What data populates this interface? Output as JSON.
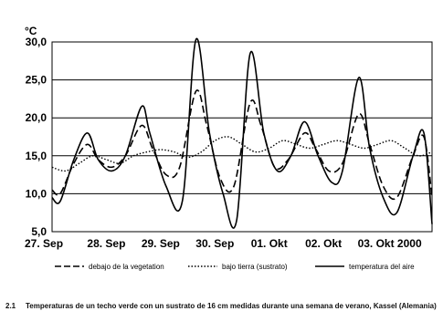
{
  "chart_data": {
    "type": "line",
    "unit_label": "°C",
    "ylim": [
      5,
      30
    ],
    "yticks": [
      "5,0",
      "10,0",
      "15,0",
      "20,0",
      "25,0",
      "30,0"
    ],
    "grid": true,
    "xlim": [
      0,
      7
    ],
    "xtick_labels": [
      "27. Sep",
      "28. Sep",
      "29. Sep",
      "30. Sep",
      "01. Okt",
      "02. Okt",
      "03. Okt 2000"
    ],
    "legend_position": "bottom",
    "series": [
      {
        "name": "debajo de la vegetation",
        "style": "dashed",
        "x": [
          0,
          0.15,
          0.4,
          0.65,
          0.85,
          1.1,
          1.35,
          1.65,
          1.85,
          2.1,
          2.35,
          2.65,
          2.85,
          3.1,
          3.35,
          3.65,
          3.85,
          4.1,
          4.35,
          4.65,
          4.85,
          5.1,
          5.35,
          5.65,
          5.85,
          6.1,
          6.35,
          6.65,
          6.85,
          7.0
        ],
        "values": [
          10.5,
          10.0,
          14.0,
          16.5,
          14.5,
          13.5,
          15.0,
          19.0,
          16.0,
          12.5,
          13.5,
          23.5,
          19.0,
          12.0,
          11.0,
          22.0,
          19.0,
          13.5,
          14.5,
          18.0,
          16.0,
          13.0,
          14.0,
          20.5,
          16.5,
          11.0,
          9.5,
          15.0,
          17.5,
          9.5
        ]
      },
      {
        "name": "bajo tierra (sustrato)",
        "style": "dotted",
        "x": [
          0,
          0.25,
          0.5,
          0.75,
          1.0,
          1.25,
          1.5,
          1.75,
          2.0,
          2.25,
          2.5,
          2.75,
          3.0,
          3.25,
          3.5,
          3.75,
          4.0,
          4.25,
          4.5,
          4.75,
          5.0,
          5.25,
          5.5,
          5.75,
          6.0,
          6.25,
          6.5,
          6.75,
          7.0
        ],
        "values": [
          13.5,
          13.0,
          14.0,
          15.0,
          14.5,
          14.0,
          15.0,
          15.5,
          15.8,
          15.5,
          14.8,
          15.5,
          17.0,
          17.5,
          16.5,
          15.5,
          16.0,
          17.0,
          16.5,
          16.0,
          16.5,
          17.0,
          16.5,
          16.0,
          16.5,
          17.0,
          16.0,
          15.0,
          15.5
        ]
      },
      {
        "name": "temperatura del aire",
        "style": "solid",
        "x": [
          0,
          0.15,
          0.4,
          0.65,
          0.85,
          1.1,
          1.35,
          1.65,
          1.8,
          2.1,
          2.4,
          2.65,
          2.9,
          3.15,
          3.4,
          3.65,
          3.9,
          4.15,
          4.4,
          4.65,
          4.9,
          5.15,
          5.35,
          5.65,
          5.85,
          6.1,
          6.35,
          6.65,
          6.85,
          7.0
        ],
        "values": [
          9.5,
          9.0,
          14.5,
          18.0,
          14.5,
          13.0,
          15.0,
          21.5,
          18.0,
          11.0,
          9.0,
          30.3,
          18.0,
          10.0,
          6.5,
          28.5,
          18.0,
          13.0,
          15.0,
          19.5,
          15.0,
          11.5,
          13.0,
          25.3,
          16.0,
          9.5,
          7.5,
          15.0,
          18.0,
          6.0
        ]
      }
    ]
  },
  "legend": {
    "item1": "debajo de la vegetation",
    "item2": "bajo tierra (sustrato)",
    "item3": "temperatura del aire"
  },
  "caption": {
    "number": "2.1",
    "text": "Temperaturas de un techo verde con un sustrato de 16 cm medidas durante una semana de verano, Kassel (Alemania)"
  }
}
